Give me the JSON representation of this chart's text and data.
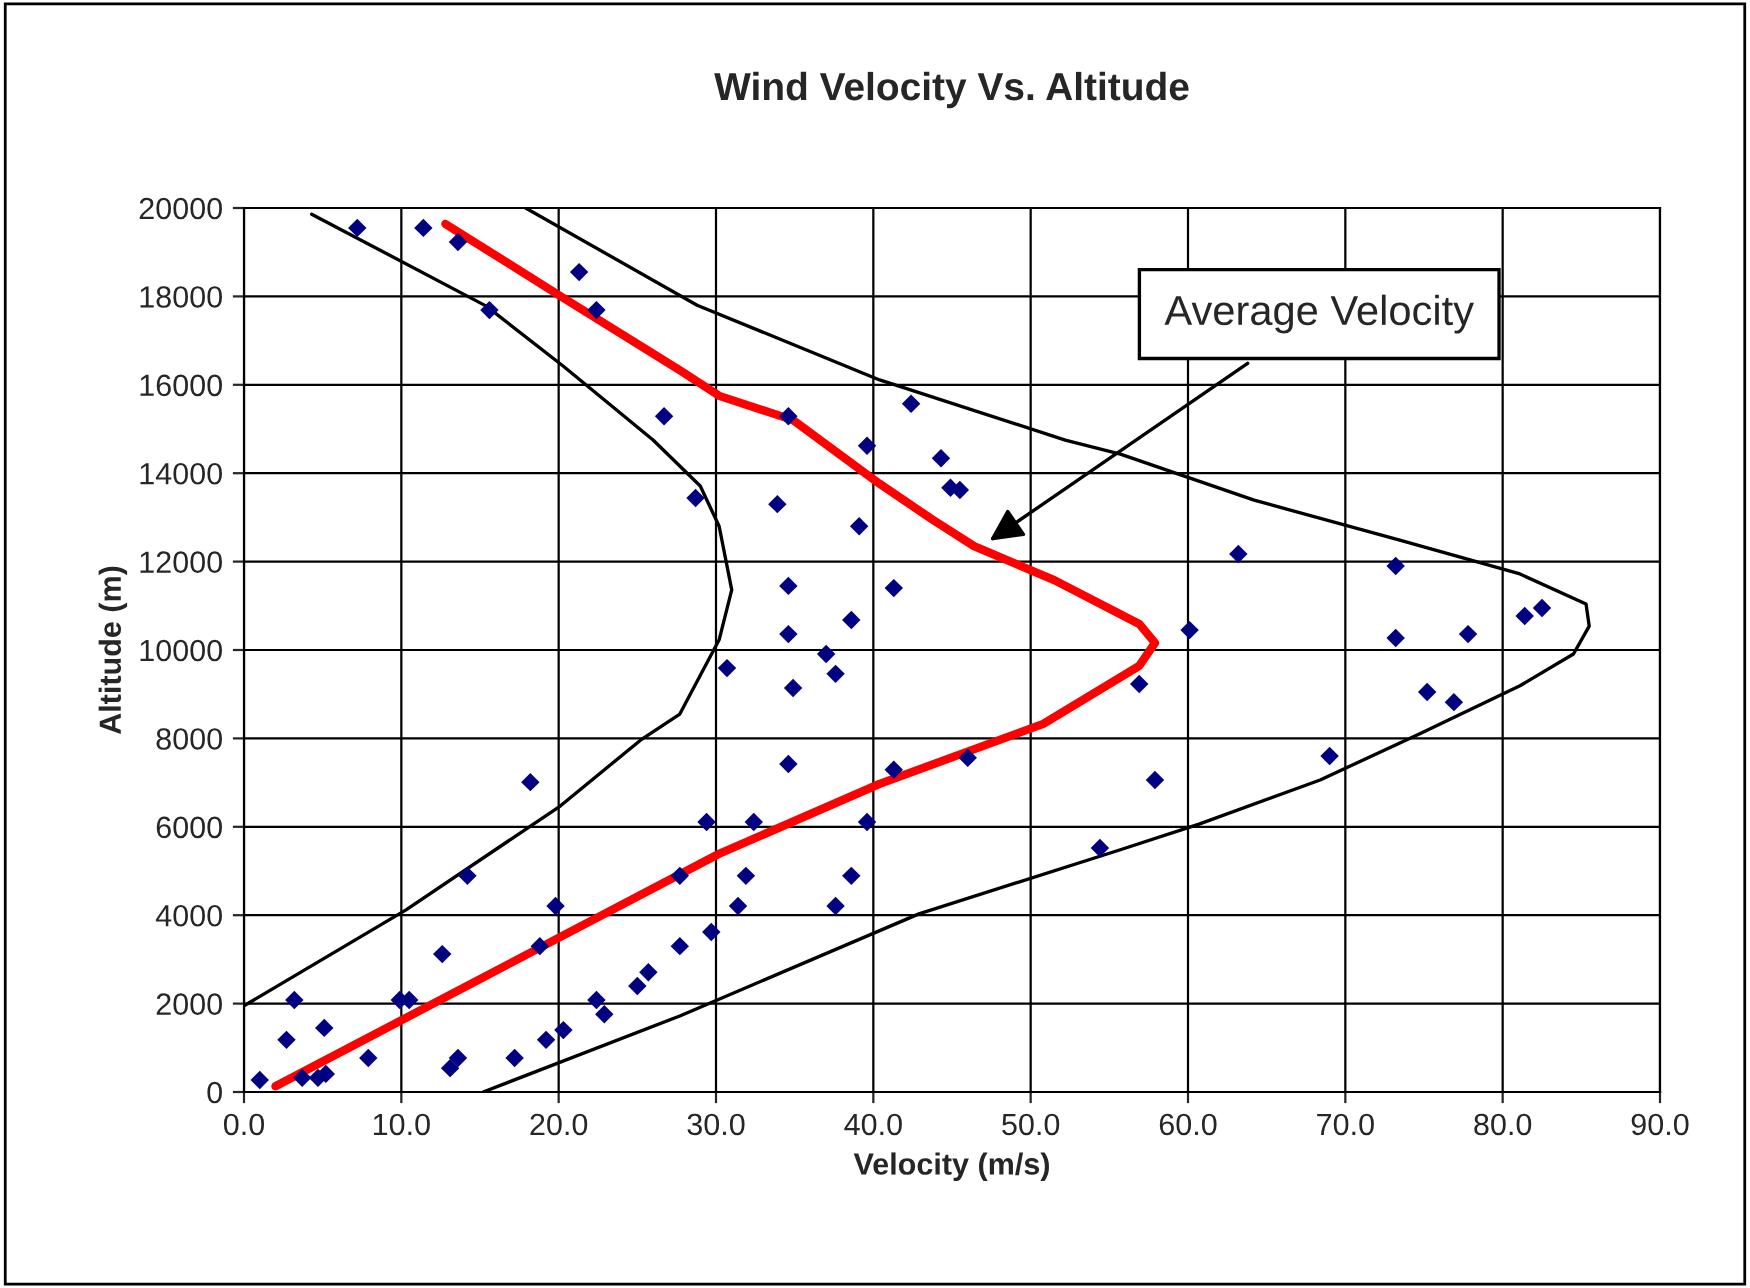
{
  "chart_data": {
    "type": "scatter",
    "title": "Wind Velocity Vs. Altitude",
    "xlabel": "Velocity (m/s)",
    "ylabel": "Altitude (m)",
    "xlim": [
      0,
      90
    ],
    "xticks": [
      {
        "value": 0,
        "label": "0.0"
      },
      {
        "value": 10,
        "label": "10.0"
      },
      {
        "value": 20,
        "label": "20.0"
      },
      {
        "value": 30,
        "label": "30.0"
      },
      {
        "value": 40,
        "label": "40.0"
      },
      {
        "value": 50,
        "label": "50.0"
      },
      {
        "value": 60,
        "label": "60.0"
      },
      {
        "value": 70,
        "label": "70.0"
      },
      {
        "value": 80,
        "label": "80.0"
      },
      {
        "value": 90,
        "label": "90.0"
      }
    ],
    "ylim": [
      0,
      20000
    ],
    "yticks": [
      0,
      2000,
      4000,
      6000,
      8000,
      10000,
      12000,
      14000,
      16000,
      18000,
      20000
    ],
    "grid": true,
    "legend": false,
    "annotations": [
      {
        "text": "Average Velocity",
        "x": 47.1,
        "y": 12400
      }
    ],
    "series": [
      {
        "marker": "diamond",
        "color": "#000080",
        "x": [
          7.2,
          11.4,
          13.6,
          15.6,
          21.3,
          22.4,
          26.7,
          28.7,
          34.6,
          42.4,
          39.6,
          44.3,
          44.9,
          45.5,
          33.9,
          39.1,
          34.6,
          41.3,
          34.6,
          38.6,
          37.0,
          30.7,
          34.9,
          37.6,
          34.6,
          41.3,
          46.0,
          56.9,
          57.9,
          54.4,
          29.4,
          32.4,
          39.6,
          31.9,
          38.6,
          31.4,
          37.6,
          29.7,
          27.7,
          18.2,
          14.2,
          19.8,
          27.7,
          12.6,
          18.8,
          3.2,
          9.9,
          10.5,
          22.4,
          22.9,
          25.0,
          25.7,
          2.7,
          5.1,
          7.9,
          20.3,
          19.2,
          17.2,
          13.6,
          13.1,
          1.0,
          3.7,
          4.7,
          5.2,
          63.2,
          73.2,
          81.4,
          82.5,
          60.1,
          73.2,
          77.8,
          75.2,
          76.9,
          69.0
        ],
        "values": [
          19550,
          19550,
          19230,
          17690,
          18550,
          17690,
          15290,
          13440,
          15290,
          15570,
          14620,
          14340,
          13670,
          13620,
          13300,
          12800,
          11450,
          11400,
          10360,
          10680,
          9910,
          9590,
          9140,
          9460,
          7420,
          7290,
          7560,
          9230,
          7060,
          5520,
          6110,
          6110,
          6110,
          4890,
          4890,
          4210,
          4210,
          3620,
          3300,
          7010,
          4890,
          4210,
          4890,
          3120,
          3300,
          2080,
          2080,
          2080,
          2080,
          1760,
          2400,
          2710,
          1180,
          1450,
          770,
          1400,
          1180,
          770,
          770,
          540,
          270,
          320,
          320,
          410,
          12170,
          11900,
          10770,
          10950,
          10450,
          10270,
          10360,
          9050,
          8820,
          7600
        ]
      },
      {
        "type": "line",
        "marker": "none",
        "color": "#ff0000",
        "x": [
          2.0,
          30.2,
          40.4,
          50.8,
          56.9,
          57.9,
          56.9,
          51.5,
          46.4,
          43.8,
          40.4,
          34.9,
          30.2,
          27.7,
          20.1,
          12.8
        ],
        "values": [
          130,
          5390,
          6970,
          8330,
          9640,
          10160,
          10590,
          11580,
          12350,
          12940,
          13760,
          15200,
          15750,
          16330,
          18010,
          19640
        ]
      },
      {
        "type": "line",
        "marker": "none",
        "color": "#000000",
        "x": [
          4.3,
          15.4,
          20.3,
          26.0,
          29.0,
          30.2,
          31.0,
          30.2,
          27.7,
          25.2,
          20.1,
          10.3,
          0.0
        ],
        "values": [
          19860,
          17780,
          16420,
          14750,
          13710,
          12800,
          11360,
          10230,
          8550,
          7960,
          6470,
          4120,
          1950
        ]
      },
      {
        "type": "line",
        "marker": "none",
        "color": "#000000",
        "x": [
          17.9,
          28.8,
          40.4,
          52.2,
          55.7,
          64.2,
          73.4,
          81.1,
          85.3,
          85.5,
          84.5,
          81.1,
          74.7,
          68.4,
          60.7,
          55.7,
          42.9,
          27.7,
          15.2
        ],
        "values": [
          20000,
          17800,
          16110,
          14750,
          14430,
          13390,
          12490,
          11720,
          11040,
          10540,
          9910,
          9190,
          8100,
          7060,
          6060,
          5480,
          4030,
          1720,
          0
        ]
      }
    ]
  }
}
